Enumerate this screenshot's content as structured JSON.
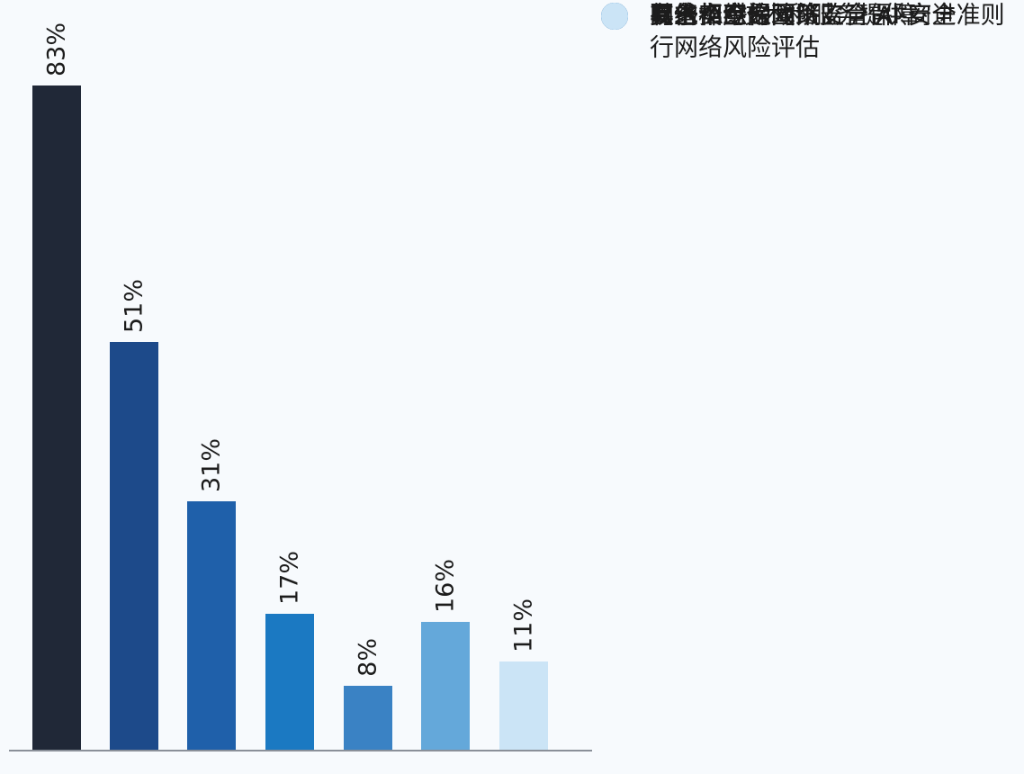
{
  "chart_data": {
    "type": "bar",
    "title": "",
    "xlabel": "",
    "ylabel": "",
    "ylim": [
      0,
      90
    ],
    "grid": false,
    "legend_position": "right",
    "value_label_rotation": -90,
    "background_color": "#f7fafd",
    "axis_color": "#8a9099",
    "label_text_color": "#1c1c1c",
    "categories": [
      "网络安全保障",
      "要求 AI 技术和服务提供商进行网络风险评估",
      "具备相应的网络安全保障",
      "有一个综合政策监管 AI 安全准则",
      "有一个专门团队监管 AI 安全",
      "其他",
      "以上都不是"
    ],
    "values": [
      83,
      51,
      31,
      17,
      8,
      16,
      11
    ],
    "value_labels": [
      "83%",
      "51%",
      "31%",
      "17%",
      "8%",
      "16%",
      "11%"
    ],
    "colors": [
      "#202837",
      "#1d4a8a",
      "#1f60aa",
      "#1b79c2",
      "#3a82c4",
      "#64a8da",
      "#cbe4f6"
    ]
  },
  "legend": {
    "items": [
      {
        "color": "#202837",
        "lines": [
          "网络安全保障"
        ]
      },
      {
        "color": "#1d4a8a",
        "lines": [
          "要求 AI 技术和服务提供商进",
          "行网络风险评估"
        ]
      },
      {
        "color": "#1f60aa",
        "lines": [
          "具备相应的网络安全保障"
        ]
      },
      {
        "color": "#1b79c2",
        "lines": [
          "有一个综合政策监管 AI 安全准则"
        ]
      },
      {
        "color": "#3a82c4",
        "lines": [
          "有一个专门团队监管 AI 安全"
        ]
      },
      {
        "color": "#64a8da",
        "lines": [
          "其他"
        ]
      },
      {
        "color": "#cbe4f6",
        "lines": [
          "以上都不是"
        ]
      }
    ]
  }
}
